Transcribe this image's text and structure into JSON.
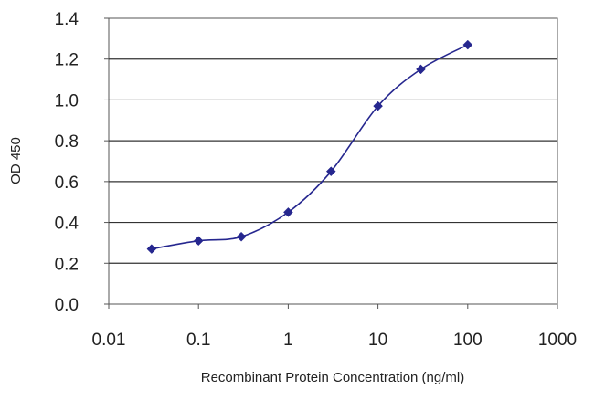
{
  "chart_data": {
    "type": "line",
    "title": "",
    "xlabel": "Recombinant Protein Concentration (ng/ml)",
    "ylabel": "OD 450",
    "x_scale": "log",
    "xlim": [
      0.01,
      1000
    ],
    "ylim": [
      0,
      1.4
    ],
    "x_ticks": [
      0.01,
      0.1,
      1,
      10,
      100,
      1000
    ],
    "x_tick_labels": [
      "0.01",
      "0.1",
      "1",
      "10",
      "100",
      "1000"
    ],
    "y_ticks": [
      0,
      0.2,
      0.4,
      0.6,
      0.8,
      1.0,
      1.2,
      1.4
    ],
    "y_tick_labels": [
      "0.0",
      "0.2",
      "0.4",
      "0.6",
      "0.8",
      "1.0",
      "1.2",
      "1.4"
    ],
    "grid": "horizontal",
    "legend": "none",
    "series": [
      {
        "x": [
          0.03,
          0.1,
          0.3,
          1,
          3,
          10,
          30,
          100
        ],
        "y": [
          0.27,
          0.31,
          0.33,
          0.45,
          0.65,
          0.97,
          1.15,
          1.27
        ],
        "color": "#26278f",
        "marker": "diamond"
      }
    ]
  }
}
